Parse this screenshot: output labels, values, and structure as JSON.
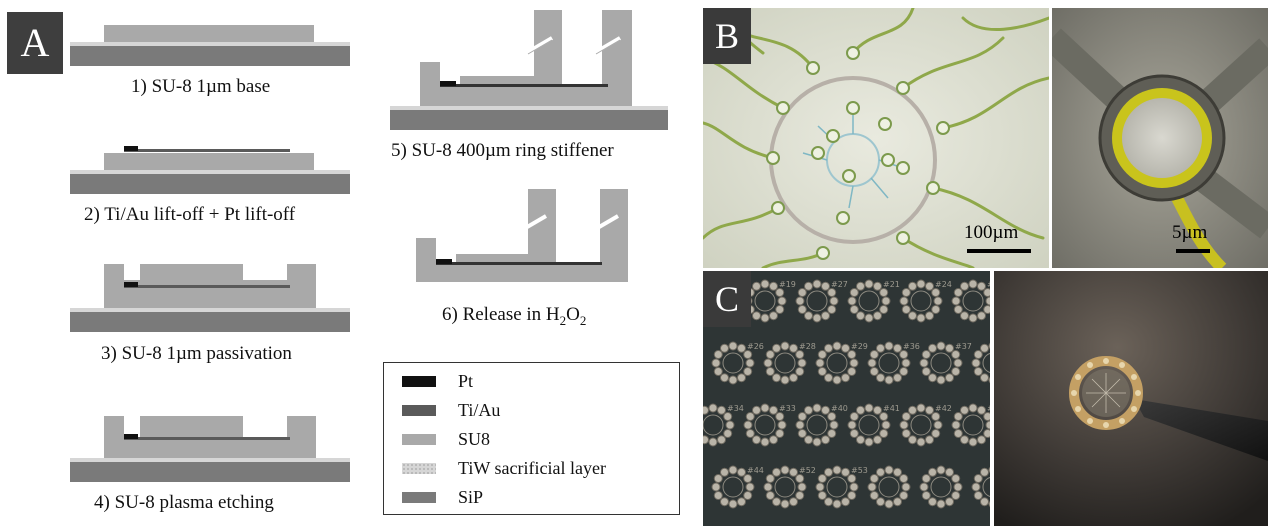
{
  "panels": {
    "a": "A",
    "b": "B",
    "c": "C"
  },
  "steps": [
    {
      "id": 1,
      "label": "1) SU-8  1µm base"
    },
    {
      "id": 2,
      "label": "2) Ti/Au lift-off + Pt lift-off"
    },
    {
      "id": 3,
      "label": "3) SU-8  1µm passivation"
    },
    {
      "id": 4,
      "label": "4) SU-8  plasma etching"
    },
    {
      "id": 5,
      "label": "5) SU-8  400µm ring stiffener"
    },
    {
      "id": 6,
      "label_prefix": "6) Release in H",
      "sub1": "2",
      "mid": "O",
      "sub2": "2"
    }
  ],
  "legend": [
    {
      "label": "Pt",
      "color": "#111111"
    },
    {
      "label": "Ti/Au",
      "color": "#5a5a5a"
    },
    {
      "label": "SU8",
      "color": "#a9a9a9"
    },
    {
      "label": "TiW sacrificial layer",
      "color": "#d6d6d6"
    },
    {
      "label": "SiP",
      "color": "#7a7a7a"
    }
  ],
  "scale_bars": {
    "b_left": "100µm",
    "b_right": "5µm"
  },
  "wafer_labels": [
    "#18",
    "#19",
    "#27",
    "#21",
    "#24",
    "#25",
    "#26",
    "#28",
    "#29",
    "#36",
    "#37",
    "#35",
    "#34",
    "#33",
    "#40",
    "#41",
    "#42",
    "#43",
    "#44",
    "#52",
    "#53"
  ]
}
